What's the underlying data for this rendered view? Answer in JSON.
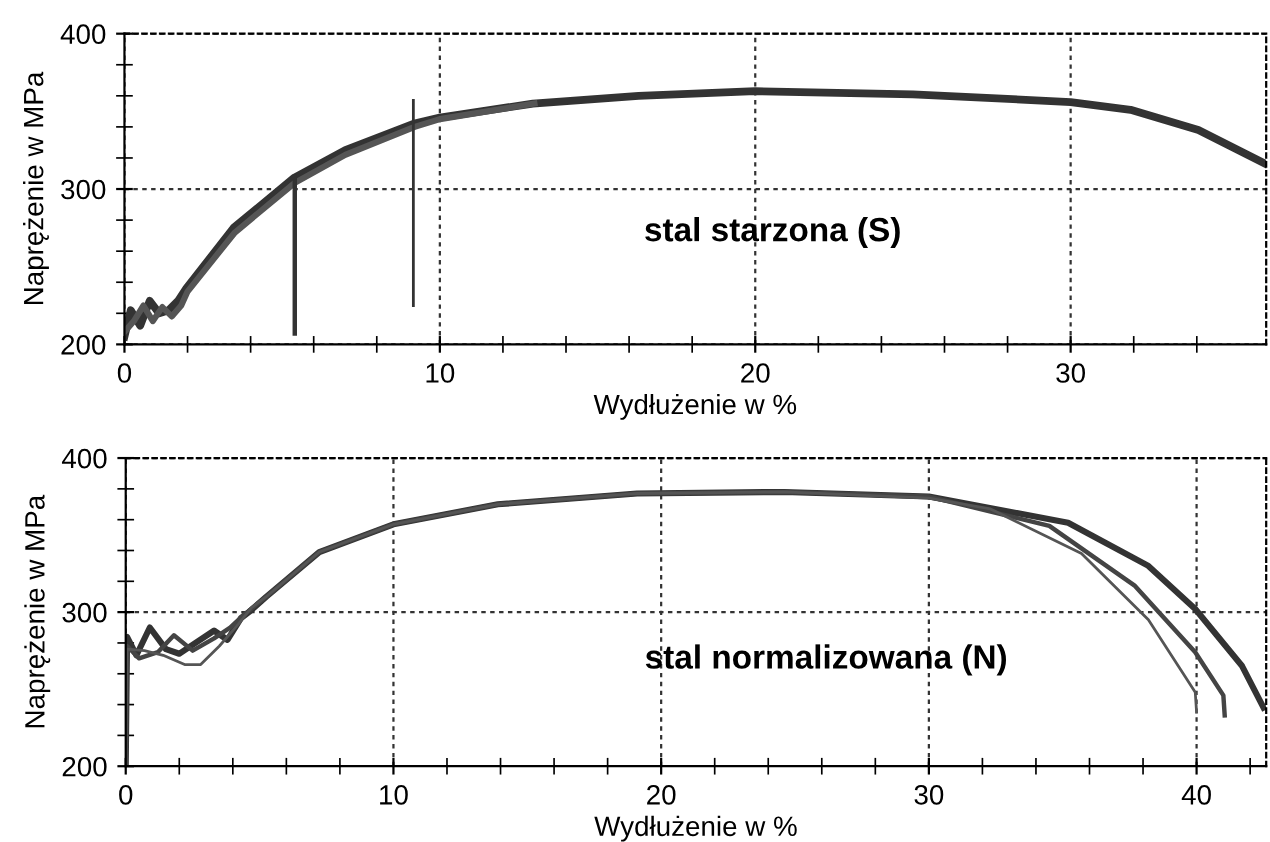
{
  "chart_data": [
    {
      "type": "line",
      "xlabel": "Wydłużenie w %",
      "ylabel": "Naprężenie w MPa",
      "xlim": [
        0,
        36.2
      ],
      "ylim": [
        200,
        400
      ],
      "xticks": [
        0,
        {
          "value": 2,
          "label": null
        },
        {
          "value": 4,
          "label": null
        },
        {
          "value": 6,
          "label": null
        },
        {
          "value": 8,
          "label": null
        },
        10,
        {
          "value": 12,
          "label": null
        },
        {
          "value": 14,
          "label": null
        },
        {
          "value": 16,
          "label": null
        },
        {
          "value": 18,
          "label": null
        },
        20,
        {
          "value": 22,
          "label": null
        },
        {
          "value": 24,
          "label": null
        },
        {
          "value": 26,
          "label": null
        },
        {
          "value": 28,
          "label": null
        },
        30,
        {
          "value": 32,
          "label": null
        },
        {
          "value": 34,
          "label": null
        }
      ],
      "yticks": [
        200,
        {
          "value": 220,
          "label": null
        },
        {
          "value": 240,
          "label": null
        },
        {
          "value": 260,
          "label": null
        },
        {
          "value": 280,
          "label": null
        },
        300,
        {
          "value": 320,
          "label": null
        },
        {
          "value": 340,
          "label": null
        },
        {
          "value": 360,
          "label": null
        },
        {
          "value": 380,
          "label": null
        },
        400
      ],
      "grid": true,
      "marker": "none",
      "line_style": "solid",
      "annotations": [
        "stal starzona (S)"
      ],
      "series": [
        {
          "color": "#333333",
          "x": [
            0,
            0.2,
            0.5,
            0.8,
            1.1,
            1.4,
            1.7,
            1.96,
            3.46,
            5.36,
            7.0,
            9.16,
            10,
            12.95,
            16.3,
            20.0,
            25.0,
            30.0,
            31.9,
            34.05,
            36.2
          ],
          "values": [
            205,
            222,
            212,
            228,
            220,
            222,
            228,
            236,
            275,
            307,
            325,
            342,
            346,
            355,
            360,
            363,
            361,
            356,
            351,
            338,
            316
          ]
        },
        {
          "color": "#555555",
          "x": [
            0,
            0.3,
            0.6,
            0.9,
            1.2,
            1.5,
            1.8,
            2.0,
            3.5,
            5.4,
            7.0,
            9.2,
            10,
            13.0
          ],
          "values": [
            208,
            215,
            225,
            215,
            224,
            218,
            225,
            234,
            272,
            304,
            322,
            340,
            345,
            355
          ]
        },
        {
          "color": "#333333",
          "x": [
            5.4,
            5.4
          ],
          "values": [
            207,
            308
          ]
        },
        {
          "color": "#333333",
          "x": [
            9.16,
            9.16
          ],
          "values": [
            225,
            357
          ]
        }
      ]
    },
    {
      "type": "line",
      "xlabel": "Wydłużenie w %",
      "ylabel": "Naprężenie w MPa",
      "xlim": [
        0,
        42.6
      ],
      "ylim": [
        200,
        400
      ],
      "xticks": [
        0,
        {
          "value": 2,
          "label": null
        },
        {
          "value": 4,
          "label": null
        },
        {
          "value": 6,
          "label": null
        },
        {
          "value": 8,
          "label": null
        },
        10,
        {
          "value": 12,
          "label": null
        },
        {
          "value": 14,
          "label": null
        },
        {
          "value": 16,
          "label": null
        },
        {
          "value": 18,
          "label": null
        },
        20,
        {
          "value": 22,
          "label": null
        },
        {
          "value": 24,
          "label": null
        },
        {
          "value": 26,
          "label": null
        },
        {
          "value": 28,
          "label": null
        },
        30,
        {
          "value": 32,
          "label": null
        },
        {
          "value": 34,
          "label": null
        },
        {
          "value": 36,
          "label": null
        },
        {
          "value": 38,
          "label": null
        },
        40,
        {
          "value": 42,
          "label": null
        }
      ],
      "yticks": [
        200,
        {
          "value": 220,
          "label": null
        },
        {
          "value": 240,
          "label": null
        },
        {
          "value": 260,
          "label": null
        },
        {
          "value": 280,
          "label": null
        },
        300,
        {
          "value": 320,
          "label": null
        },
        {
          "value": 340,
          "label": null
        },
        {
          "value": 360,
          "label": null
        },
        {
          "value": 380,
          "label": null
        },
        400
      ],
      "grid": true,
      "marker": "none",
      "line_style": "solid",
      "annotations": [
        "stal normalizowana (N)"
      ],
      "series": [
        {
          "color": "#333333",
          "x": [
            0,
            0.05,
            0.4,
            0.9,
            1.5,
            2.0,
            2.6,
            3.3,
            3.8,
            4.3,
            4.6,
            5.25,
            7.23,
            10,
            13.9,
            19.1,
            24.6,
            30.0,
            35.2,
            38.2,
            39.95,
            41.7,
            42.5
          ],
          "values": [
            200,
            284,
            272,
            290,
            276,
            273,
            280,
            288,
            282,
            296,
            300,
            310,
            339,
            357,
            370,
            377,
            378,
            375,
            358,
            330,
            302,
            265,
            238
          ]
        },
        {
          "color": "#444444",
          "x": [
            0,
            0.05,
            0.5,
            1.2,
            1.8,
            2.5,
            3.3,
            3.9,
            4.4,
            5.25,
            7.23,
            10,
            13.9,
            19.1,
            24.6,
            30.0,
            34.5,
            37.7,
            39.95,
            41.0,
            41.05
          ],
          "values": [
            200,
            278,
            270,
            274,
            285,
            275,
            283,
            290,
            298,
            310,
            339,
            357,
            370,
            377,
            378,
            375,
            356,
            317,
            274,
            246,
            233
          ]
        },
        {
          "color": "#555555",
          "x": [
            0,
            0.05,
            0.7,
            1.4,
            2.2,
            2.8,
            3.5,
            4.2,
            4.7,
            5.25,
            7.23,
            10,
            13.9,
            19.1,
            24.6,
            30.0,
            32.3,
            35.7,
            38.2,
            39.95,
            40.0
          ],
          "values": [
            200,
            276,
            275,
            272,
            266,
            266,
            278,
            292,
            303,
            310,
            339,
            357,
            370,
            377,
            378,
            374,
            367,
            338,
            295,
            248,
            235
          ]
        }
      ]
    }
  ]
}
